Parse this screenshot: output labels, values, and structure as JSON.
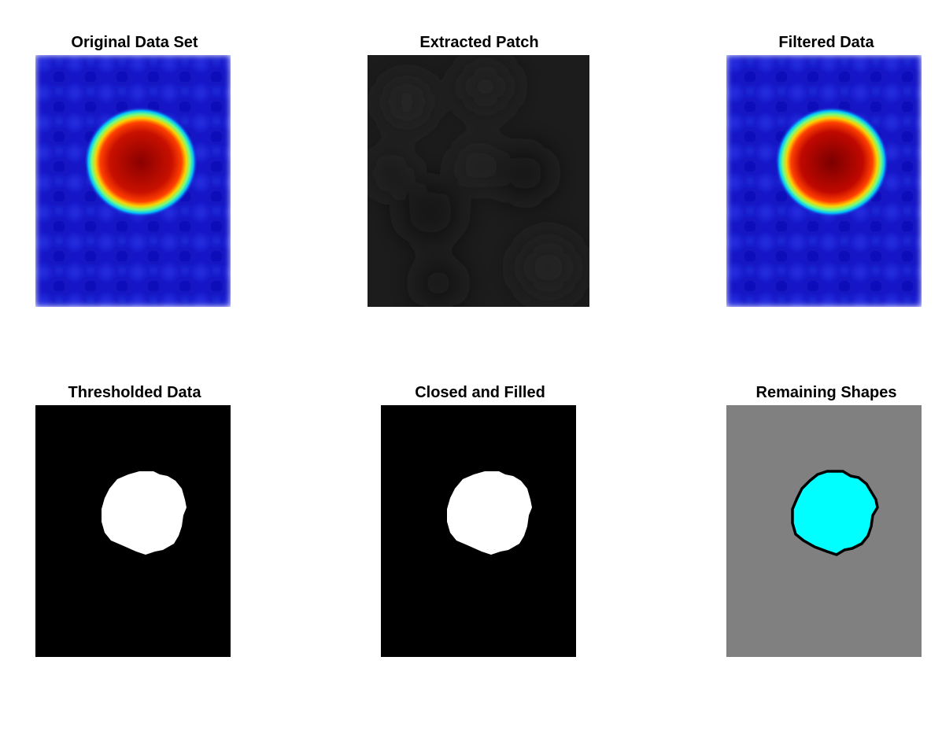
{
  "figure": {
    "panels": [
      {
        "id": "original",
        "title": "Original Data Set",
        "colormap": "jet"
      },
      {
        "id": "patch",
        "title": "Extracted Patch",
        "colormap": "gray"
      },
      {
        "id": "filtered",
        "title": "Filtered Data",
        "colormap": "jet"
      },
      {
        "id": "thresholded",
        "title": "Thresholded Data",
        "colormap": "binary"
      },
      {
        "id": "closed",
        "title": "Closed and Filled",
        "colormap": "binary"
      },
      {
        "id": "remaining",
        "title": "Remaining Shapes",
        "colormap": "label"
      }
    ]
  },
  "colors": {
    "jet_background": "#1a1acf",
    "jet_core": "#b00000",
    "patch_background": "#1c1c1c",
    "binary_background": "#000000",
    "binary_foreground": "#ffffff",
    "label_background": "#808080",
    "label_shape": "#00ffff",
    "label_outline": "#000000"
  }
}
